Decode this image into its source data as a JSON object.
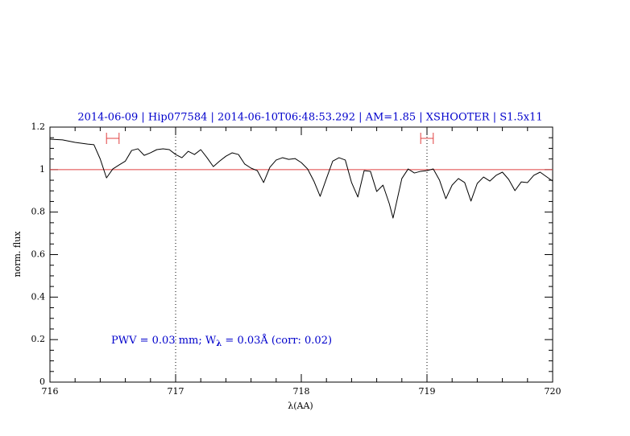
{
  "chart_data": {
    "type": "line",
    "title": "2014-06-09 | Hip077584 | 2014-06-10T06:48:53.292 | AM=1.85 | XSHOOTER | S1.5x11",
    "xlabel": "λ(AA)",
    "ylabel": "norm. flux",
    "annotation": [
      "PWV = 0.03 mm; W",
      "λ",
      " = 0.03Å (corr: 0.02)"
    ],
    "x": [
      716.0,
      716.1,
      716.2,
      716.3,
      716.35,
      716.4,
      716.45,
      716.5,
      716.55,
      716.6,
      716.65,
      716.7,
      716.75,
      716.8,
      716.85,
      716.9,
      716.95,
      717.0,
      717.05,
      717.1,
      717.15,
      717.2,
      717.25,
      717.3,
      717.35,
      717.4,
      717.45,
      717.5,
      717.55,
      717.6,
      717.65,
      717.7,
      717.75,
      717.8,
      717.85,
      717.9,
      717.95,
      718.0,
      718.05,
      718.1,
      718.15,
      718.2,
      718.25,
      718.3,
      718.35,
      718.4,
      718.45,
      718.5,
      718.55,
      718.6,
      718.65,
      718.7,
      718.73,
      718.8,
      718.85,
      718.9,
      718.95,
      719.0,
      719.05,
      719.1,
      719.15,
      719.2,
      719.25,
      719.3,
      719.35,
      719.4,
      719.45,
      719.5,
      719.55,
      719.6,
      719.65,
      719.7,
      719.75,
      719.8,
      719.85,
      719.9,
      720.0
    ],
    "series": [
      {
        "color": "#000000",
        "values": [
          1.143,
          1.14,
          1.128,
          1.12,
          1.117,
          1.05,
          0.961,
          1.003,
          1.022,
          1.04,
          1.09,
          1.098,
          1.067,
          1.079,
          1.094,
          1.098,
          1.094,
          1.071,
          1.056,
          1.086,
          1.071,
          1.094,
          1.056,
          1.014,
          1.04,
          1.063,
          1.079,
          1.071,
          1.026,
          1.007,
          0.995,
          0.939,
          1.011,
          1.045,
          1.056,
          1.048,
          1.052,
          1.033,
          1.003,
          0.946,
          0.874,
          0.958,
          1.04,
          1.056,
          1.045,
          0.939,
          0.871,
          0.995,
          0.992,
          0.897,
          0.927,
          0.84,
          0.772,
          0.958,
          1.003,
          0.984,
          0.992,
          0.995,
          1.003,
          0.95,
          0.863,
          0.927,
          0.958,
          0.939,
          0.852,
          0.935,
          0.965,
          0.946,
          0.973,
          0.988,
          0.954,
          0.901,
          0.942,
          0.939,
          0.973,
          0.988,
          0.946
        ]
      }
    ],
    "reference_line": {
      "value": 1,
      "color": "#e04040"
    },
    "vlines": [
      717,
      719
    ],
    "ranges": {
      "color": "#e04040",
      "y": 1.147,
      "x": [
        [
          716.45,
          716.55
        ],
        [
          718.95,
          719.05
        ]
      ]
    },
    "xlim": [
      716,
      720
    ],
    "xticks": [
      716,
      717,
      718,
      719,
      720
    ],
    "ylim": [
      0,
      1.2
    ],
    "yticks": [
      0,
      0.2,
      0.4,
      0.6,
      0.8,
      1,
      1.2
    ],
    "title_color": "#0000cc"
  }
}
